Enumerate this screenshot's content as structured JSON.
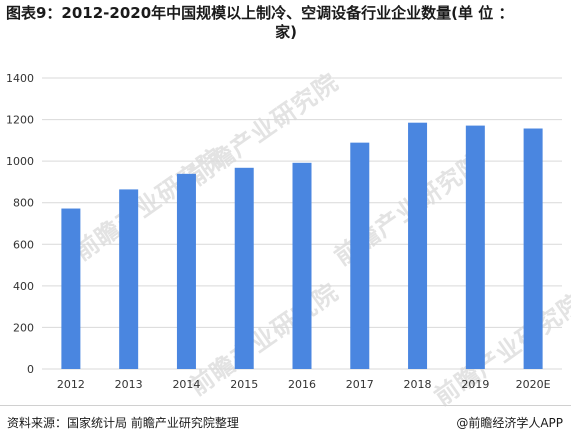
{
  "title_line1": "图表9：2012-2020年中国规模以上制冷、空调设备行业企业数量(单 位 ：",
  "title_line2": "家)",
  "footer": {
    "source": "资料来源：国家统计局 前瞻产业研究院整理",
    "brand": "@前瞻经济学人APP"
  },
  "watermark": "前瞻产业研究院",
  "colors": {
    "bar": "#4a86e0",
    "grid": "#d9d9d9",
    "axis_text": "#333333"
  },
  "chart_data": {
    "type": "bar",
    "categories": [
      "2012",
      "2013",
      "2014",
      "2015",
      "2016",
      "2017",
      "2018",
      "2019",
      "2020E"
    ],
    "values": [
      772,
      864,
      939,
      968,
      992,
      1089,
      1185,
      1171,
      1157
    ],
    "title": "图表9：2012-2020年中国规模以上制冷、空调设备行业企业数量(单 位 ：家)",
    "xlabel": "",
    "ylabel": "",
    "ylim": [
      0,
      1400
    ],
    "yticks": [
      0,
      200,
      400,
      600,
      800,
      1000,
      1200,
      1400
    ],
    "grid": true,
    "legend": "none"
  }
}
